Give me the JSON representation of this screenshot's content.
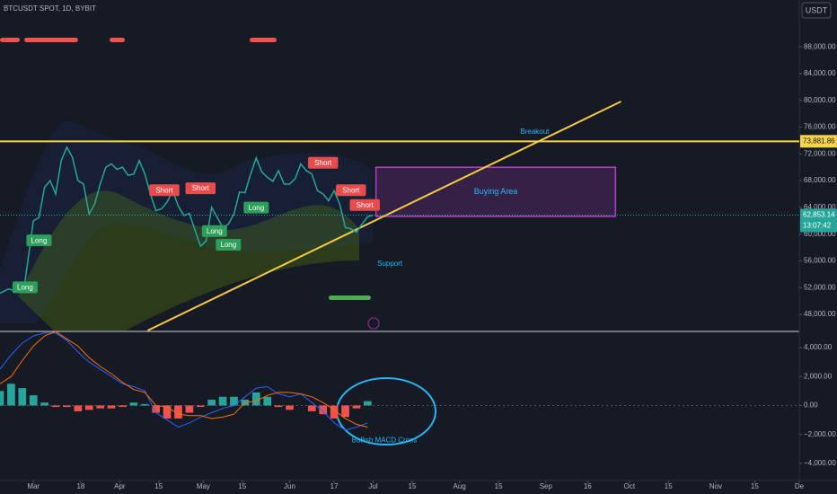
{
  "chart_data": [
    {
      "type": "line",
      "title": "BTCUSDT SPOT, 1D, BYBIT",
      "currency": "USDT",
      "color": "#26a69a",
      "x": [
        -12,
        -9,
        -6,
        -3,
        0,
        2,
        4,
        6,
        8,
        10,
        12,
        14,
        16,
        18,
        20,
        22,
        24,
        26,
        28,
        30,
        32,
        34,
        36,
        38,
        40,
        42,
        44,
        46,
        48,
        50,
        52,
        54,
        56,
        58,
        60,
        62,
        64,
        66,
        68,
        70,
        72,
        74,
        76,
        78,
        80,
        82,
        84,
        86,
        88,
        90,
        92,
        94,
        96,
        98,
        100,
        102,
        104,
        106,
        108,
        110,
        112,
        114,
        116,
        118,
        120,
        122
      ],
      "values": [
        51200,
        51800,
        51500,
        53000,
        62000,
        62500,
        67000,
        68000,
        66000,
        71000,
        73000,
        71500,
        68000,
        67500,
        63000,
        64500,
        67500,
        70000,
        70500,
        69700,
        70000,
        68800,
        69000,
        71000,
        69000,
        66000,
        63500,
        63800,
        64800,
        66500,
        64200,
        62800,
        63100,
        60600,
        58200,
        59000,
        64000,
        62500,
        61000,
        61500,
        63000,
        66300,
        66200,
        69000,
        71400,
        69300,
        68500,
        67900,
        69500,
        67500,
        67500,
        68300,
        70500,
        69500,
        69000,
        66500,
        66000,
        65000,
        66500,
        64500,
        61000,
        60800,
        60300,
        61500,
        62600,
        62853
      ],
      "xlim": [
        -12,
        275
      ],
      "ylim": [
        45600,
        95000
      ],
      "xticks": [
        {
          "value": 0,
          "label": "Mar"
        },
        {
          "value": 17,
          "label": "18"
        },
        {
          "value": 31,
          "label": "Apr"
        },
        {
          "value": 45,
          "label": "15"
        },
        {
          "value": 61,
          "label": "May"
        },
        {
          "value": 75,
          "label": "15"
        },
        {
          "value": 92,
          "label": "Jun"
        },
        {
          "value": 108,
          "label": "17"
        },
        {
          "value": 122,
          "label": "Jul"
        },
        {
          "value": 136,
          "label": "15"
        },
        {
          "value": 153,
          "label": "Aug"
        },
        {
          "value": 167,
          "label": "15"
        },
        {
          "value": 184,
          "label": "Sep"
        },
        {
          "value": 199,
          "label": "16"
        },
        {
          "value": 214,
          "label": "Oct"
        },
        {
          "value": 228,
          "label": "15"
        },
        {
          "value": 245,
          "label": "Nov"
        },
        {
          "value": 259,
          "label": "15"
        },
        {
          "value": 275,
          "label": "De"
        }
      ],
      "yticks": [
        {
          "value": 48000,
          "label": "48,000.00"
        },
        {
          "value": 52000,
          "label": "52,000.00"
        },
        {
          "value": 56000,
          "label": "56,000.00"
        },
        {
          "value": 60000,
          "label": "60,000.00"
        },
        {
          "value": 64000,
          "label": "64,000.00"
        },
        {
          "value": 68000,
          "label": "68,000.00"
        },
        {
          "value": 72000,
          "label": "72,000.00"
        },
        {
          "value": 76000,
          "label": "76,000.00"
        },
        {
          "value": 80000,
          "label": "80,000.00"
        },
        {
          "value": 84000,
          "label": "84,000.00"
        },
        {
          "value": 88000,
          "label": "88,000.00"
        }
      ],
      "level": {
        "value": 73881.86,
        "label": "73,881.86",
        "color": "#f7d34a"
      },
      "last_price": {
        "value": 62853.14,
        "label": "62,853.14",
        "countdown": "13:07:42",
        "color": "#26a69a"
      },
      "trendline": {
        "x": [
          41,
          211
        ],
        "values": [
          45600,
          79830
        ],
        "color": "#f5c842"
      },
      "buying_area": {
        "label": "Buying Area",
        "x": [
          123,
          209
        ],
        "values": [
          62650,
          70000
        ],
        "color": "#b040c8"
      },
      "signals": [
        {
          "text": "Long",
          "x": 2,
          "y": 59000,
          "color": "#2e9e5b"
        },
        {
          "text": "Long",
          "x": -3,
          "y": 52000,
          "color": "#2e9e5b"
        },
        {
          "text": "Long",
          "x": 65,
          "y": 60400,
          "color": "#2e9e5b"
        },
        {
          "text": "Long",
          "x": 70,
          "y": 58350,
          "color": "#2e9e5b"
        },
        {
          "text": "Long",
          "x": 80,
          "y": 63900,
          "color": "#2e9e5b"
        },
        {
          "text": "Short",
          "x": 47,
          "y": 66500,
          "color": "#e84b4b"
        },
        {
          "text": "Short",
          "x": 60,
          "y": 66800,
          "color": "#e84b4b"
        },
        {
          "text": "Short",
          "x": 104,
          "y": 70600,
          "color": "#e84b4b"
        },
        {
          "text": "Short",
          "x": 114,
          "y": 66500,
          "color": "#e84b4b"
        },
        {
          "text": "Short",
          "x": 119,
          "y": 64300,
          "color": "#e84b4b"
        }
      ],
      "annotations": [
        {
          "text": "Breakout",
          "x": 180,
          "y": 75270,
          "color": "#29b6f6"
        },
        {
          "text": "Support",
          "x": 128,
          "y": 55530,
          "color": "#29b6f6"
        }
      ]
    },
    {
      "type": "macd",
      "x": [
        -12,
        -8,
        -4,
        0,
        4,
        8,
        12,
        16,
        20,
        24,
        28,
        32,
        36,
        40,
        44,
        48,
        52,
        56,
        60,
        64,
        68,
        72,
        76,
        80,
        84,
        88,
        92,
        96,
        100,
        104,
        108,
        112,
        116,
        120
      ],
      "values": [
        1000,
        1500,
        1200,
        700,
        200,
        -100,
        -100,
        -400,
        -300,
        -200,
        -200,
        -100,
        200,
        100,
        -500,
        -900,
        -900,
        -500,
        -100,
        400,
        600,
        600,
        400,
        900,
        600,
        -100,
        -300,
        0,
        -400,
        -600,
        -900,
        -800,
        -200,
        300
      ],
      "up_color": "#26a69a",
      "down_color": "#ef5350",
      "lines": [
        {
          "color": "#2962ff",
          "values": [
            2500,
            3500,
            4300,
            4800,
            5000,
            5000,
            4500,
            3700,
            3000,
            2500,
            2000,
            1500,
            1300,
            1000,
            -500,
            -1000,
            -1500,
            -1200,
            -800,
            -500,
            -200,
            0,
            600,
            1200,
            1300,
            800,
            600,
            800,
            200,
            -400,
            -1200,
            -1700,
            -1500,
            -1200
          ]
        },
        {
          "color": "#ff6d00",
          "values": [
            1500,
            2000,
            3100,
            4100,
            4800,
            5100,
            4600,
            4100,
            3300,
            2700,
            2200,
            1600,
            1100,
            900,
            0,
            -100,
            -600,
            -700,
            -700,
            -900,
            -800,
            -600,
            200,
            300,
            700,
            900,
            900,
            800,
            600,
            200,
            -300,
            -900,
            -1300,
            -1500
          ]
        }
      ],
      "xlim": [
        -12,
        275
      ],
      "ylim": [
        -5180,
        5050
      ],
      "yticks": [
        {
          "value": 4000,
          "label": "4,000.00"
        },
        {
          "value": 2000,
          "label": "2,000.00"
        },
        {
          "value": 0,
          "label": "0.00"
        },
        {
          "value": -2000,
          "label": "−2,000.00"
        },
        {
          "value": -4000,
          "label": "−4,000.00"
        }
      ],
      "annotations": [
        {
          "text": "Bullish MACD Cross",
          "x": 126,
          "y": -2400,
          "color": "#29b6f6"
        }
      ]
    }
  ]
}
